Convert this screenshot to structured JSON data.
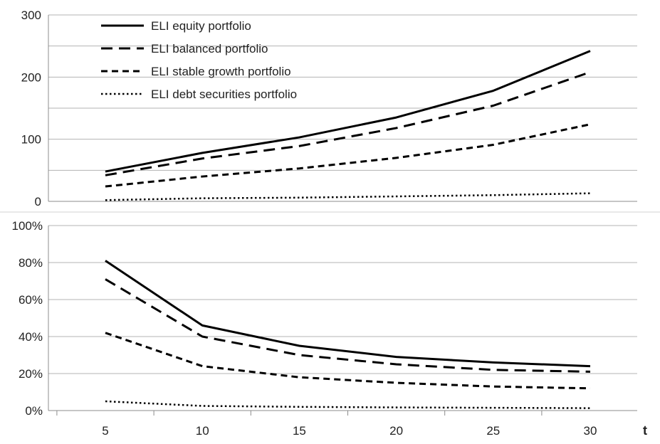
{
  "chart_data": [
    {
      "type": "line",
      "x": [
        5,
        10,
        15,
        20,
        25,
        30
      ],
      "xlabel": "",
      "ylabel": "",
      "ylim": [
        0,
        300
      ],
      "yticks": [
        "0",
        "100",
        "200",
        "300"
      ],
      "grid": true,
      "legend": "top-left",
      "series": [
        {
          "name": "ELI equity portfolio",
          "dash": "solid",
          "values": [
            48,
            78,
            103,
            135,
            178,
            242
          ]
        },
        {
          "name": "ELI balanced portfolio",
          "dash": "long-dash",
          "values": [
            42,
            69,
            89,
            118,
            154,
            208
          ]
        },
        {
          "name": "ELI stable growth portfolio",
          "dash": "short-dash",
          "values": [
            24,
            40,
            53,
            70,
            91,
            124
          ]
        },
        {
          "name": "ELI debt securities portfolio",
          "dash": "dotted",
          "values": [
            2,
            5,
            6,
            8,
            10,
            13
          ]
        }
      ]
    },
    {
      "type": "line",
      "x": [
        5,
        10,
        15,
        20,
        25,
        30
      ],
      "xlabel": "t",
      "ylabel": "",
      "ylim": [
        0,
        100
      ],
      "xticks": [
        "5",
        "10",
        "15",
        "20",
        "25",
        "30"
      ],
      "yticks": [
        "0%",
        "20%",
        "40%",
        "60%",
        "80%",
        "100%"
      ],
      "grid": true,
      "series": [
        {
          "dash": "solid",
          "values": [
            81,
            46,
            35,
            29,
            26,
            24
          ]
        },
        {
          "dash": "long-dash",
          "values": [
            71,
            40,
            30,
            25,
            22,
            21
          ]
        },
        {
          "dash": "short-dash",
          "values": [
            42,
            24,
            18,
            15,
            13,
            12
          ]
        },
        {
          "dash": "dotted",
          "values": [
            5,
            2.5,
            2,
            1.7,
            1.5,
            1.3
          ]
        }
      ]
    }
  ]
}
